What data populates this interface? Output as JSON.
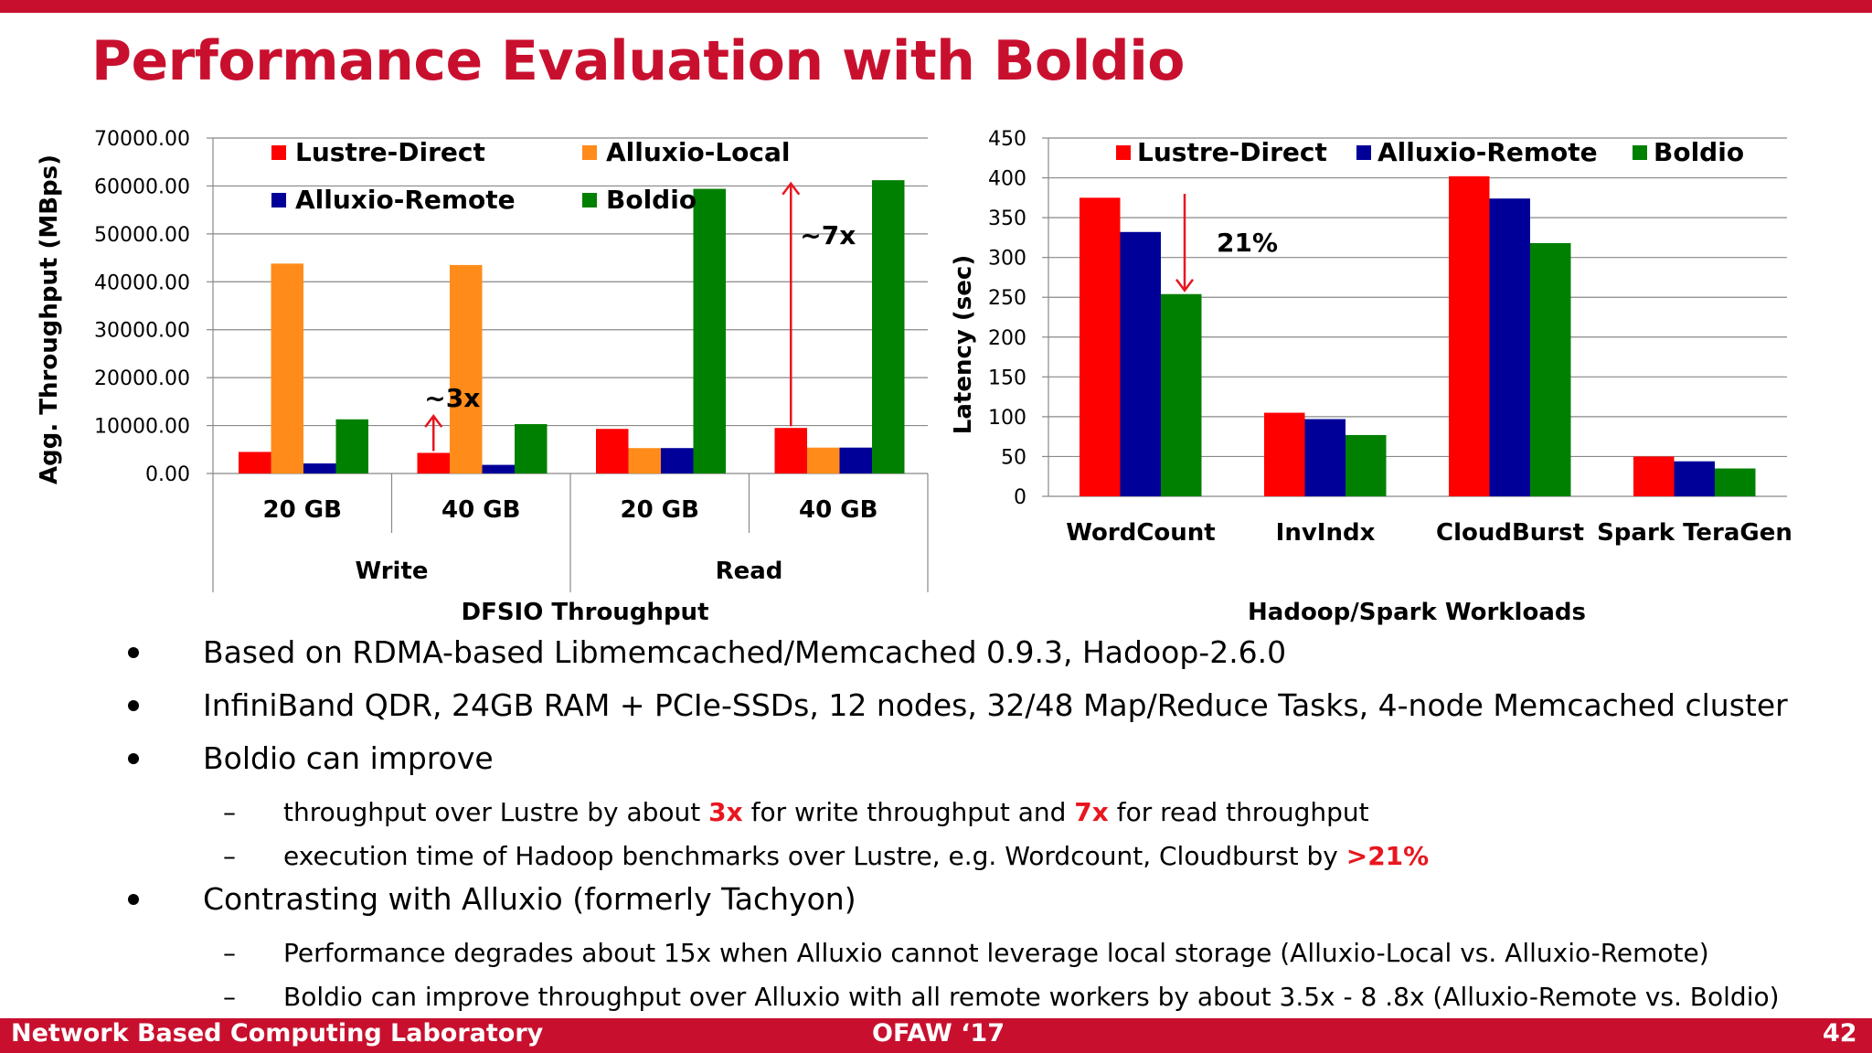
{
  "slide": {
    "title": "Performance Evaluation with Boldio",
    "footer_left": "Network Based Computing Laboratory",
    "footer_center": "OFAW ‘17",
    "footer_right": "42"
  },
  "colors": {
    "brand_red": "#c8102e",
    "Lustre-Direct": "#ff0000",
    "Alluxio-Local": "#ff8c1a",
    "Alluxio-Remote": "#000099",
    "Boldio": "#008000",
    "highlight": "#e8161f"
  },
  "bullets": [
    {
      "text": "Based on RDMA-based Libmemcached/Memcached 0.9.3, Hadoop-2.6.0"
    },
    {
      "text": "InfiniBand QDR, 24GB RAM + PCIe-SSDs, 12 nodes, 32/48 Map/Reduce Tasks, 4-node Memcached cluster"
    },
    {
      "text": "Boldio can improve",
      "sub": [
        {
          "pre": "throughput over Lustre by about ",
          "h1": "3x",
          "mid": " for write throughput and ",
          "h2": "7x",
          "post": " for read throughput"
        },
        {
          "pre": "execution time of Hadoop benchmarks over Lustre, e.g. Wordcount, Cloudburst by ",
          "h1": ">21%"
        }
      ]
    },
    {
      "text": "Contrasting with Alluxio (formerly Tachyon)",
      "sub": [
        {
          "pre": "Performance degrades about 15x when Alluxio cannot leverage local storage (Alluxio-Local vs. Alluxio-Remote)"
        },
        {
          "pre": "Boldio can improve throughput over Alluxio with all remote workers by about 3.5x - 8 .8x (Alluxio-Remote vs. Boldio)"
        }
      ]
    }
  ],
  "chart_data": [
    {
      "type": "bar",
      "title": "DFSIO Throughput",
      "ylabel": "Agg. Throughput (MBps)",
      "ylim": [
        0,
        70000
      ],
      "yticks": [
        "0.00",
        "10000.00",
        "20000.00",
        "30000.00",
        "40000.00",
        "50000.00",
        "60000.00",
        "70000.00"
      ],
      "grid": true,
      "legend_placement": "top",
      "categories": [
        "20 GB",
        "40 GB",
        "20 GB",
        "40 GB"
      ],
      "groups": [
        "Write",
        "Read"
      ],
      "series": [
        {
          "name": "Lustre-Direct",
          "values": [
            4500,
            4300,
            9300,
            9500
          ]
        },
        {
          "name": "Alluxio-Local",
          "values": [
            43800,
            43500,
            5300,
            5400
          ]
        },
        {
          "name": "Alluxio-Remote",
          "values": [
            2100,
            1800,
            5300,
            5400
          ]
        },
        {
          "name": "Boldio",
          "values": [
            11300,
            10300,
            59400,
            61200
          ]
        }
      ],
      "annotations": [
        {
          "text": "~3x",
          "category_index": 1,
          "from": 4300,
          "to": 12000
        },
        {
          "text": "~7x",
          "category_index": 3,
          "from": 9500,
          "to": 60500
        }
      ]
    },
    {
      "type": "bar",
      "title": "Hadoop/Spark Workloads",
      "ylabel": "Latency (sec)",
      "ylim": [
        0,
        450
      ],
      "yticks": [
        "0",
        "50",
        "100",
        "150",
        "200",
        "250",
        "300",
        "350",
        "400",
        "450"
      ],
      "grid": true,
      "legend_placement": "top",
      "categories": [
        "WordCount",
        "InvIndx",
        "CloudBurst",
        "Spark TeraGen"
      ],
      "series": [
        {
          "name": "Lustre-Direct",
          "values": [
            375,
            105,
            402,
            50
          ]
        },
        {
          "name": "Alluxio-Remote",
          "values": [
            332,
            97,
            374,
            44
          ]
        },
        {
          "name": "Boldio",
          "values": [
            254,
            77,
            318,
            35
          ]
        }
      ],
      "annotations": [
        {
          "text": "21%",
          "category_index": 0,
          "from": 375,
          "to": 254
        }
      ]
    }
  ]
}
